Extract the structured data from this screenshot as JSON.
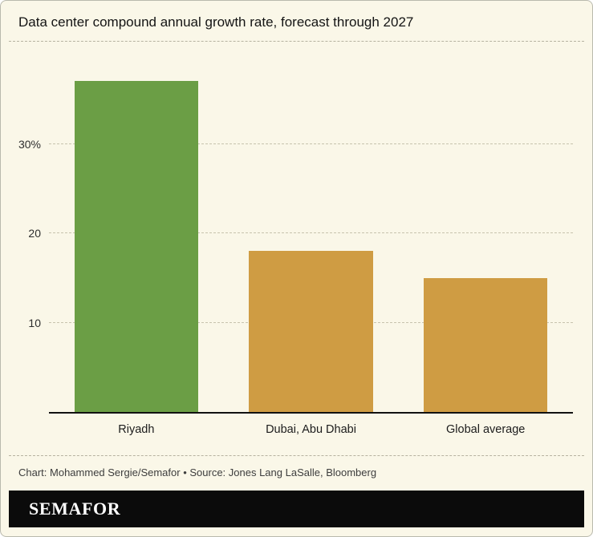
{
  "chart_data": {
    "type": "bar",
    "title": "Data center compound annual growth rate, forecast through 2027",
    "categories": [
      "Riyadh",
      "Dubai, Abu Dhabi",
      "Global average"
    ],
    "values": [
      37,
      18,
      15
    ],
    "bar_colors": [
      "#6b9e45",
      "#cf9c43",
      "#cf9c43"
    ],
    "xlabel": "",
    "ylabel": "",
    "ylim": [
      0,
      40
    ],
    "yticks": [
      {
        "value": 10,
        "label": "10"
      },
      {
        "value": 20,
        "label": "20"
      },
      {
        "value": 30,
        "label": "30%"
      }
    ],
    "grid": "horizontal-dashed",
    "legend": "none"
  },
  "footer": {
    "credit": "Chart: Mohammed Sergie/Semafor • Source: Jones Lang LaSalle, Bloomberg",
    "brand": "SEMAFOR"
  },
  "colors": {
    "background": "#faf7e8",
    "bar_green": "#6b9e45",
    "bar_gold": "#cf9c43",
    "axis": "#111111",
    "brand_bar": "#0b0b0b"
  }
}
